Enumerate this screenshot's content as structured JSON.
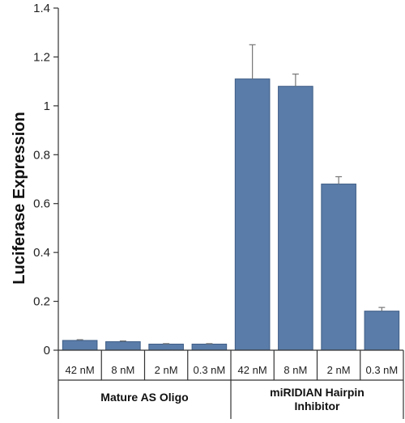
{
  "chart_data": {
    "type": "bar",
    "ylabel": "Luciferase Expression",
    "ylim": [
      0,
      1.4
    ],
    "yticks": [
      "0",
      "0.2",
      "0.4",
      "0.6",
      "0.8",
      "1",
      "1.2",
      "1.4"
    ],
    "categories": [
      "42 nM",
      "8 nM",
      "2 nM",
      "0.3 nM",
      "42 nM",
      "8 nM",
      "2 nM",
      "0.3 nM"
    ],
    "values": [
      0.04,
      0.035,
      0.025,
      0.025,
      1.11,
      1.08,
      0.68,
      0.16
    ],
    "errors": [
      0.003,
      0.003,
      0.002,
      0.002,
      0.14,
      0.05,
      0.03,
      0.015
    ],
    "groups": [
      {
        "label": "Mature AS Oligo",
        "start": 0,
        "end": 3
      },
      {
        "label": "miRIDIAN Hairpin Inhibitor",
        "start": 4,
        "end": 7
      }
    ],
    "colors": {
      "bar": "#5a7ca8",
      "bar_edge": "#3e5d86"
    },
    "grid": false
  }
}
